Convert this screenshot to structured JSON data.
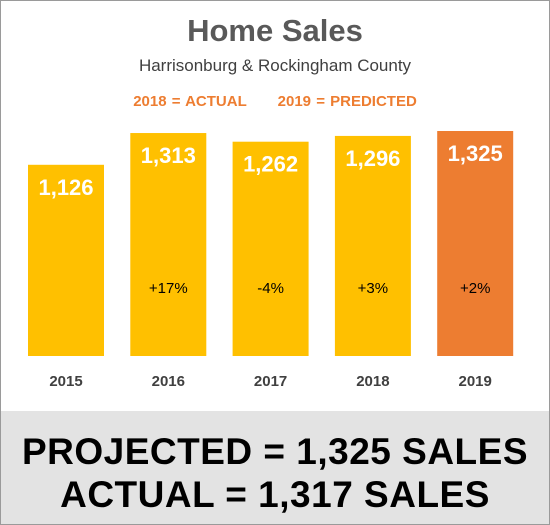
{
  "header": {
    "title": "Home Sales",
    "subtitle": "Harrisonburg & Rockingham County",
    "legend_actual": "2018 = ACTUAL",
    "legend_predicted": "2019 = PREDICTED"
  },
  "footer": {
    "line1": "PROJECTED = 1,325 SALES",
    "line2": "ACTUAL = 1,317 SALES"
  },
  "colors": {
    "actual_bar": "#ffc000",
    "predicted_bar": "#ed7d31",
    "legend_text": "#ed7d31",
    "value_label": "#ffffff",
    "change_label": "#000000",
    "footer_bg": "#e3e3e3"
  },
  "chart_data": {
    "type": "bar",
    "title": "Home Sales",
    "subtitle": "Harrisonburg & Rockingham County",
    "categories": [
      "2015",
      "2016",
      "2017",
      "2018",
      "2019"
    ],
    "values": [
      1126,
      1313,
      1262,
      1296,
      1325
    ],
    "value_labels": [
      "1,126",
      "1,313",
      "1,262",
      "1,296",
      "1,325"
    ],
    "change_labels": [
      "",
      "+17%",
      "-4%",
      "+3%",
      "+2%"
    ],
    "bar_colors": [
      "#ffc000",
      "#ffc000",
      "#ffc000",
      "#ffc000",
      "#ed7d31"
    ],
    "xlabel": "",
    "ylabel": "",
    "ylim": [
      0,
      1325
    ],
    "grid": false,
    "legend": "top-center"
  }
}
